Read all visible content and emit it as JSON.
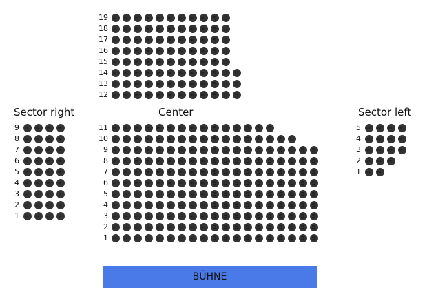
{
  "sections": [
    {
      "id": "right",
      "title": "Sector right",
      "rows": [
        {
          "row": "9",
          "seats": 4
        },
        {
          "row": "8",
          "seats": 4
        },
        {
          "row": "7",
          "seats": 4
        },
        {
          "row": "6",
          "seats": 4
        },
        {
          "row": "5",
          "seats": 4
        },
        {
          "row": "4",
          "seats": 4
        },
        {
          "row": "3",
          "seats": 4
        },
        {
          "row": "2",
          "seats": 4
        },
        {
          "row": "1",
          "seats": 4
        }
      ]
    },
    {
      "id": "center",
      "title": "Center",
      "rows": [
        {
          "row": "19",
          "seats": 11
        },
        {
          "row": "18",
          "seats": 11
        },
        {
          "row": "17",
          "seats": 11
        },
        {
          "row": "16",
          "seats": 11
        },
        {
          "row": "15",
          "seats": 11
        },
        {
          "row": "14",
          "seats": 12
        },
        {
          "row": "13",
          "seats": 12
        },
        {
          "row": "12",
          "seats": 12
        },
        {
          "row": "11",
          "seats": 15
        },
        {
          "row": "10",
          "seats": 17
        },
        {
          "row": "9",
          "seats": 19
        },
        {
          "row": "8",
          "seats": 19
        },
        {
          "row": "7",
          "seats": 19
        },
        {
          "row": "6",
          "seats": 19
        },
        {
          "row": "5",
          "seats": 19
        },
        {
          "row": "4",
          "seats": 19
        },
        {
          "row": "3",
          "seats": 19
        },
        {
          "row": "2",
          "seats": 19
        },
        {
          "row": "1",
          "seats": 19
        }
      ]
    },
    {
      "id": "left",
      "title": "Sector left",
      "rows": [
        {
          "row": "5",
          "seats": 4
        },
        {
          "row": "4",
          "seats": 4
        },
        {
          "row": "3",
          "seats": 4
        },
        {
          "row": "2",
          "seats": 3
        },
        {
          "row": "1",
          "seats": 2
        }
      ]
    }
  ],
  "stage": {
    "label": "BÜHNE",
    "color": "#4a7ae8"
  },
  "seat_color": "#333333"
}
